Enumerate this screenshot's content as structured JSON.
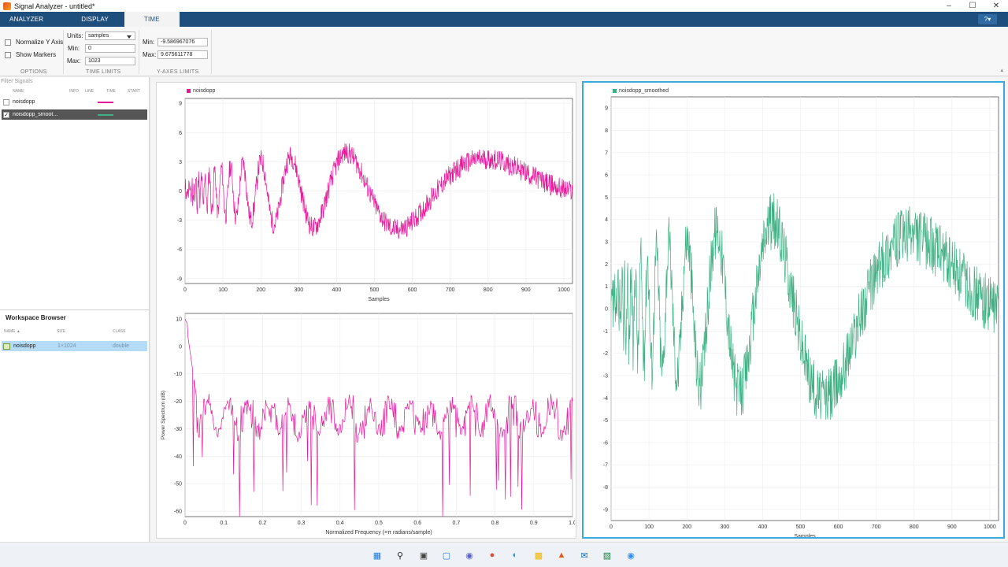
{
  "window": {
    "title": "Signal Analyzer - untitled*"
  },
  "tabs": [
    {
      "label": "ANALYZER"
    },
    {
      "label": "DISPLAY"
    },
    {
      "label": "TIME"
    }
  ],
  "ribbon": {
    "options": {
      "normalize_label": "Normalize Y Axis",
      "markers_label": "Show Markers",
      "section": "OPTIONS"
    },
    "time_limits": {
      "units_label": "Units:",
      "units_value": "samples",
      "min_label": "Min:",
      "min_value": "0",
      "max_label": "Max:",
      "max_value": "1023",
      "section": "TIME LIMITS"
    },
    "y_limits": {
      "min_label": "Min:",
      "min_value": "-9.586967076",
      "max_label": "Max:",
      "max_value": "9.675611778",
      "section": "Y-AXES LIMITS"
    }
  },
  "signal_table": {
    "filter_placeholder": "Filter Signals",
    "columns": [
      "NAME",
      "INFO",
      "LINE",
      "TIME",
      "START"
    ],
    "rows": [
      {
        "name": "noisdopp",
        "line_color": "#e8189a",
        "checked": false
      },
      {
        "name": "noisdopp_smoot...",
        "line_color": "#3fb083",
        "checked": true
      }
    ]
  },
  "workspace": {
    "title": "Workspace Browser",
    "columns": [
      "NAME ▲",
      "SIZE",
      "CLASS"
    ],
    "rows": [
      {
        "name": "noisdopp",
        "size": "1×1024",
        "class": "double"
      }
    ]
  },
  "colors": {
    "pink": "#e8189a",
    "green": "#3fb083",
    "ribbon": "#1e4e7c",
    "selection": "#b5dcf7"
  },
  "chart_data": [
    {
      "type": "line",
      "legend": "noisdopp",
      "xlabel": "Samples",
      "xlim": [
        0,
        1023
      ],
      "ylim": [
        -9.5,
        9.5
      ],
      "xticks": [
        "0",
        "100",
        "200",
        "300",
        "400",
        "500",
        "600",
        "700",
        "800",
        "900",
        "1000"
      ],
      "yticks": [
        "9",
        "6",
        "3",
        "0",
        "-3",
        "-6",
        "-9"
      ],
      "series_color": "#e8189a",
      "seed": 11
    },
    {
      "type": "line",
      "legend": "",
      "xlabel": "Normalized Frequency (×π radians/sample)",
      "ylabel": "Power Spectrum (dB)",
      "xlim": [
        0,
        1
      ],
      "ylim": [
        -62,
        12
      ],
      "xticks": [
        "0",
        "0.1",
        "0.2",
        "0.3",
        "0.4",
        "0.5",
        "0.6",
        "0.7",
        "0.8",
        "0.9",
        "1.0"
      ],
      "yticks": [
        "10",
        "0",
        "-10",
        "-20",
        "-30",
        "-40",
        "-50",
        "-60"
      ],
      "series_color": "#e8189a",
      "seed": 23
    },
    {
      "type": "line",
      "legend": "noisdopp_smoothed",
      "xlabel": "Samples",
      "xlim": [
        0,
        1023
      ],
      "ylim": [
        -9.5,
        9.5
      ],
      "xticks": [
        "0",
        "100",
        "200",
        "300",
        "400",
        "500",
        "600",
        "700",
        "800",
        "900",
        "1000"
      ],
      "yticks": [
        "9",
        "8",
        "7",
        "6",
        "5",
        "4",
        "3",
        "2",
        "1",
        "0",
        "-1",
        "-2",
        "-3",
        "-4",
        "-5",
        "-6",
        "-7",
        "-8",
        "-9"
      ],
      "series_color": "#3fb083",
      "seed": 37
    }
  ]
}
